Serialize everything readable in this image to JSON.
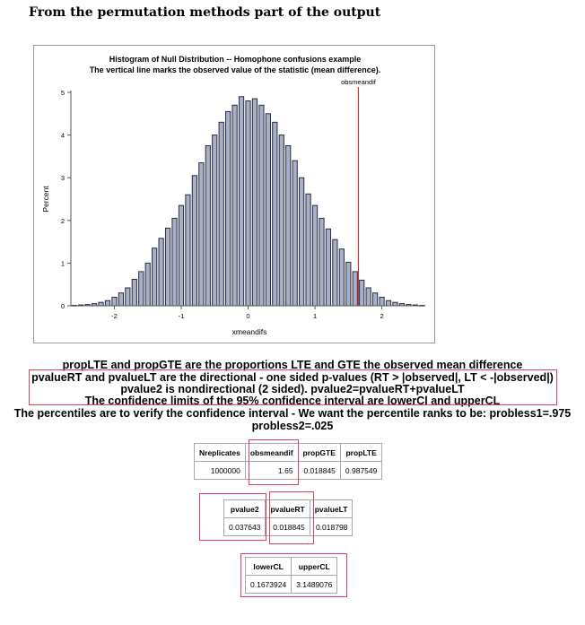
{
  "page": {
    "heading": "From the permutation methods part of the output"
  },
  "chart_data": {
    "type": "bar",
    "title": "Histogram of Null Distribution -- Homophone confusions example",
    "subtitle": "The vertical line marks the observed value of the statistic (mean difference).",
    "xlabel": "xmeandifs",
    "ylabel": "Percent",
    "xlim": [
      -2.65,
      2.65
    ],
    "ylim": [
      0,
      5
    ],
    "xticks": [
      -2,
      -1,
      0,
      1,
      2
    ],
    "yticks": [
      0,
      1,
      2,
      3,
      4,
      5
    ],
    "bin_width": 0.1,
    "bin_centers": [
      -2.6,
      -2.5,
      -2.4,
      -2.3,
      -2.2,
      -2.1,
      -2.0,
      -1.9,
      -1.8,
      -1.7,
      -1.6,
      -1.5,
      -1.4,
      -1.3,
      -1.2,
      -1.1,
      -1.0,
      -0.9,
      -0.8,
      -0.7,
      -0.6,
      -0.5,
      -0.4,
      -0.3,
      -0.2,
      -0.1,
      0.0,
      0.1,
      0.2,
      0.3,
      0.4,
      0.5,
      0.6,
      0.7,
      0.8,
      0.9,
      1.0,
      1.1,
      1.2,
      1.3,
      1.4,
      1.5,
      1.6,
      1.7,
      1.8,
      1.9,
      2.0,
      2.1,
      2.2,
      2.3,
      2.4,
      2.5,
      2.6
    ],
    "values": [
      0.01,
      0.02,
      0.03,
      0.05,
      0.08,
      0.12,
      0.2,
      0.3,
      0.42,
      0.62,
      0.8,
      1.0,
      1.35,
      1.58,
      1.82,
      2.05,
      2.35,
      2.6,
      3.05,
      3.35,
      3.75,
      4.0,
      4.3,
      4.55,
      4.7,
      4.9,
      4.8,
      4.85,
      4.7,
      4.5,
      4.3,
      4.0,
      3.75,
      3.4,
      3.0,
      2.62,
      2.35,
      2.05,
      1.8,
      1.55,
      1.33,
      1.02,
      0.8,
      0.6,
      0.42,
      0.3,
      0.2,
      0.12,
      0.08,
      0.05,
      0.03,
      0.02,
      0.01
    ],
    "reference_line": {
      "label": "obsmeandif",
      "value": 1.65
    },
    "grid": false,
    "legend": "none"
  },
  "description": {
    "line1": "propLTE and propGTE are the proportions LTE and GTE the observed mean difference",
    "line2": "pvalueRT and pvalueLT are the directional - one sided p-values (RT > |observed|, LT < -|observed|)",
    "line3": "pvalue2 is nondirectional (2 sided). pvalue2=pvalueRT+pvalueLT",
    "line4": "The confidence limits of the 95% confidence interval are lowerCl and upperCL",
    "line5": "The percentiles are to verify the confidence interval - We want the percentile ranks to be: probless1=.975",
    "line6": "probless2=.025"
  },
  "table1": {
    "headers": [
      "Nreplicates",
      "obsmeandif",
      "propGTE",
      "propLTE"
    ],
    "row": [
      "1000000",
      "1.65",
      "0.018845",
      "0.987549"
    ]
  },
  "table2": {
    "headers": [
      "pvalue2",
      "pvalueRT",
      "pvalueLT"
    ],
    "row": [
      "0.037643",
      "0.018845",
      "0.018798"
    ]
  },
  "table3": {
    "headers": [
      "lowerCL",
      "upperCL"
    ],
    "row": [
      "0.1673924",
      "3.1489076"
    ]
  },
  "colors": {
    "bar_fill": "#a6b0c8",
    "bar_stroke": "#2c2c3a",
    "reference_line": "#d03040",
    "highlight_box": "#e0405a"
  }
}
